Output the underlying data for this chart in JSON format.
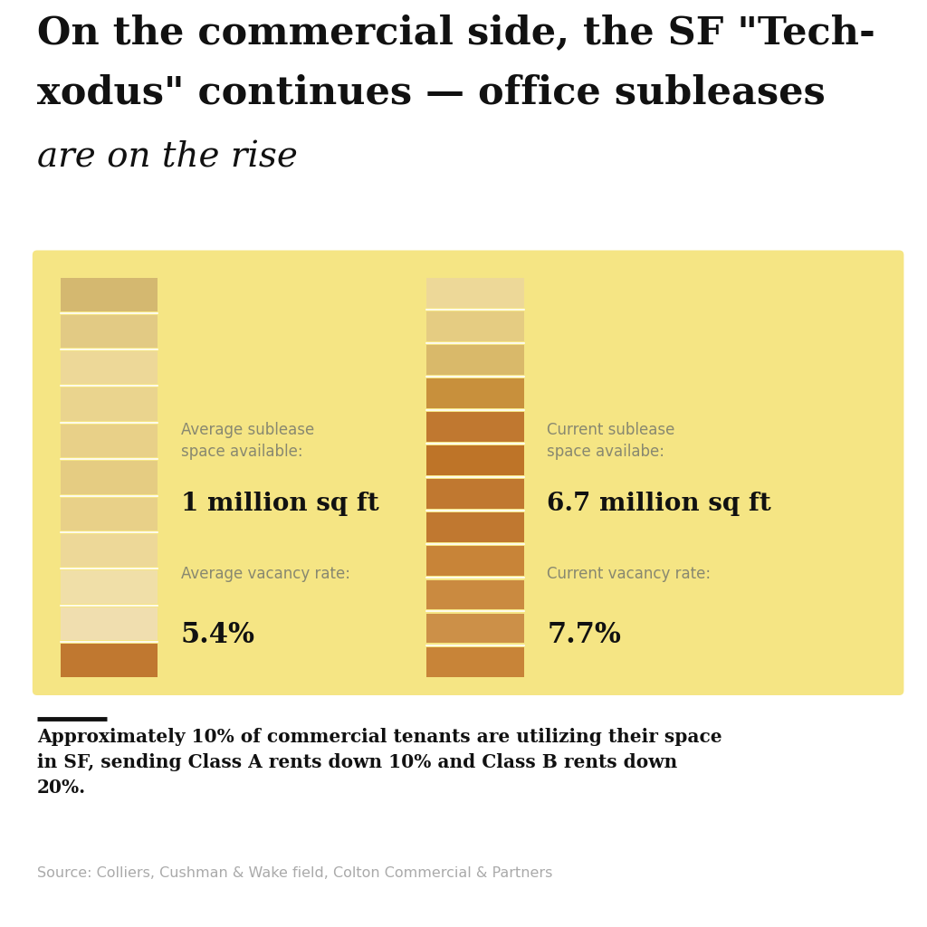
{
  "title_line1": "On the commercial side, the SF \"Tech-",
  "title_line2": "xodus\" continues — office subleases",
  "title_italic": "are on the rise",
  "panel_color": "#F5E584",
  "left_bar_label_top": "Average sublease\nspace available:",
  "left_bar_value": "1 million sq ft",
  "left_vac_label": "Average vacancy rate:",
  "left_vac_value": "5.4%",
  "right_bar_label_top": "Current sublease\nspace availabe:",
  "right_bar_value": "6.7 million sq ft",
  "right_vac_label": "Current vacancy rate:",
  "right_vac_value": "7.7%",
  "footnote": "Approximately 10% of commercial tenants are utilizing their space\nin SF, sending Class A rents down 10% and Class B rents down\n20%.",
  "source": "Source: Colliers, Cushman & Wake field, Colton Commercial & Partners",
  "left_segments": [
    "#D4B870",
    "#E2CA84",
    "#EDD898",
    "#EAD48E",
    "#E8D088",
    "#E5CC82",
    "#E8D088",
    "#EDD898",
    "#F0DFA8",
    "#F0DEAF",
    "#C07830"
  ],
  "right_segments": [
    "#EDD898",
    "#E5CC82",
    "#D9B96A",
    "#C8903C",
    "#C07830",
    "#BE7428",
    "#C07830",
    "#C07830",
    "#C88438",
    "#CA8A40",
    "#CC9048",
    "#C88438"
  ]
}
